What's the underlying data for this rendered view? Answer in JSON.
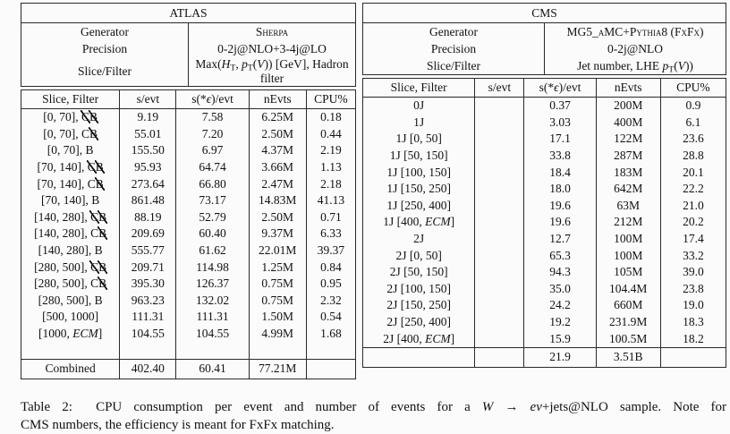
{
  "caption": {
    "line1": "Table 2:  CPU consumption per event and number of events for a [i]W[/i] → [i]eν[/i]+jets@NLO sample. Note for",
    "line2": "CMS numbers, the efficiency is meant for FxFx matching."
  },
  "atlas": {
    "title": "ATLAS",
    "info": [
      {
        "label": "Generator",
        "value": "Sherpa"
      },
      {
        "label": "Precision",
        "value": "0-2j@NLO+3-4j@LO"
      },
      {
        "label": "Slice/Filter",
        "value": "Max([i]H[/i][sub]T[/sub], [i]p[/i][sub]T[/sub]([i]V[/i])) [GeV], Hadron filter"
      }
    ],
    "columns": [
      "Slice, Filter",
      "s/evt",
      "s(*[i]ϵ[/i])/evt",
      "nEvts",
      "CPU%"
    ],
    "rows": [
      [
        "[0, 70], [st]C[/st][st]B[/st]",
        "9.19",
        "7.58",
        "6.25M",
        "0.18"
      ],
      [
        "[0, 70], C[st]B[/st]",
        "55.01",
        "7.20",
        "2.50M",
        "0.44"
      ],
      [
        "[0, 70], B",
        "155.50",
        "6.97",
        "4.37M",
        "2.19"
      ],
      [
        "[70, 140], [st]C[/st][st]B[/st]",
        "95.93",
        "64.74",
        "3.66M",
        "1.13"
      ],
      [
        "[70, 140], C[st]B[/st]",
        "273.64",
        "66.80",
        "2.47M",
        "2.18"
      ],
      [
        "[70, 140], B",
        "861.48",
        "73.17",
        "14.83M",
        "41.13"
      ],
      [
        "[140, 280], [st]C[/st][st]B[/st]",
        "88.19",
        "52.79",
        "2.50M",
        "0.71"
      ],
      [
        "[140, 280], C[st]B[/st]",
        "209.69",
        "60.40",
        "9.37M",
        "6.33"
      ],
      [
        "[140, 280], B",
        "555.77",
        "61.62",
        "22.01M",
        "39.37"
      ],
      [
        "[280, 500], [st]C[/st][st]B[/st]",
        "209.71",
        "114.98",
        "1.25M",
        "0.84"
      ],
      [
        "[280, 500], C[st]B[/st]",
        "395.30",
        "126.37",
        "0.75M",
        "0.95"
      ],
      [
        "[280, 500], B",
        "963.23",
        "132.02",
        "0.75M",
        "2.32"
      ],
      [
        "[500, 1000]",
        "111.31",
        "111.31",
        "1.50M",
        "0.54"
      ],
      [
        "[1000, [i]ECM[/i]]",
        "104.55",
        "104.55",
        "4.99M",
        "1.68"
      ],
      [
        "",
        "",
        "",
        "",
        ""
      ]
    ],
    "combined": [
      "Combined",
      "402.40",
      "60.41",
      "77.21M",
      ""
    ]
  },
  "cms": {
    "title": "CMS",
    "info": [
      {
        "label": "Generator",
        "value": "MG5_aMC+Pythia8 (FxFx)"
      },
      {
        "label": "Precision",
        "value": "0-2j@NLO"
      },
      {
        "label": "Slice/Filter",
        "value": "Jet number, LHE [i]p[/i][sub]T[/sub]([i]V[/i]))"
      }
    ],
    "columns": [
      "Slice, Filter",
      "s/evt",
      "s(*[i]ϵ[/i])/evt",
      "nEvts",
      "CPU%"
    ],
    "rows": [
      [
        "0J",
        "",
        "0.37",
        "200M",
        "0.9"
      ],
      [
        "1J",
        "",
        "3.03",
        "400M",
        "6.1"
      ],
      [
        "1J [0, 50]",
        "",
        "17.1",
        "122M",
        "23.6"
      ],
      [
        "1J [50, 150]",
        "",
        "33.8",
        "287M",
        "28.8"
      ],
      [
        "1J [100, 150]",
        "",
        "18.4",
        "183M",
        "20.1"
      ],
      [
        "1J [150, 250]",
        "",
        "18.0",
        "642M",
        "22.2"
      ],
      [
        "1J [250, 400]",
        "",
        "19.6",
        "63M",
        "21.0"
      ],
      [
        "1J [400, [i]ECM[/i]]",
        "",
        "19.6",
        "212M",
        "20.2"
      ],
      [
        "2J",
        "",
        "12.7",
        "100M",
        "17.4"
      ],
      [
        "2J [0, 50]",
        "",
        "65.3",
        "100M",
        "33.2"
      ],
      [
        "2J [50, 150]",
        "",
        "94.3",
        "105M",
        "39.0"
      ],
      [
        "2J [100, 150]",
        "",
        "35.0",
        "104.4M",
        "23.8"
      ],
      [
        "2J [150, 250]",
        "",
        "24.2",
        "660M",
        "19.0"
      ],
      [
        "2J [250, 400]",
        "",
        "19.2",
        "231.9M",
        "18.3"
      ],
      [
        "2J [400, [i]ECM[/i]]",
        "",
        "15.9",
        "100.5M",
        "18.2"
      ]
    ],
    "combined": [
      "",
      "",
      "21.9",
      "3.51B",
      ""
    ]
  }
}
